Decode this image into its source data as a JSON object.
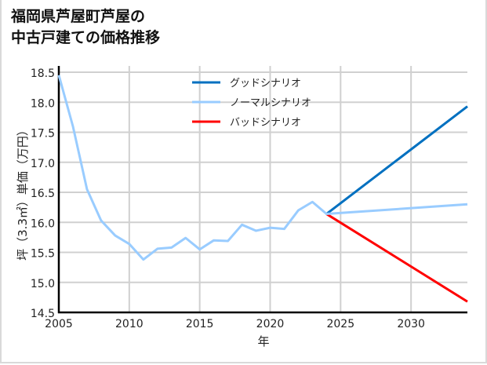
{
  "title_lines": [
    "福岡県芦屋町芦屋の",
    "中古戸建ての価格推移"
  ],
  "chart_data": {
    "type": "line",
    "title": "福岡県芦屋町芦屋の中古戸建ての価格推移",
    "xlabel": "年",
    "ylabel": "坪（3.3㎡）単価（万円）",
    "xlim": [
      2005,
      2034
    ],
    "ylim": [
      14.5,
      18.5
    ],
    "x_ticks": [
      2005,
      2010,
      2015,
      2020,
      2025,
      2030
    ],
    "y_ticks": [
      14.5,
      15.0,
      15.5,
      16.0,
      16.5,
      17.0,
      17.5,
      18.0,
      18.5
    ],
    "grid": true,
    "legend_position": "upper center",
    "series": [
      {
        "name": "ノーマルシナリオ",
        "color": "#99ccff",
        "x": [
          2005,
          2006,
          2007,
          2008,
          2009,
          2010,
          2011,
          2012,
          2013,
          2014,
          2015,
          2016,
          2017,
          2018,
          2019,
          2020,
          2021,
          2022,
          2023,
          2024,
          2034
        ],
        "values": [
          18.45,
          17.6,
          16.55,
          16.03,
          15.78,
          15.64,
          15.38,
          15.56,
          15.58,
          15.74,
          15.55,
          15.7,
          15.69,
          15.96,
          15.86,
          15.91,
          15.89,
          16.2,
          16.34,
          16.14,
          16.3
        ]
      },
      {
        "name": "グッドシナリオ",
        "color": "#0070c0",
        "x": [
          2024,
          2034
        ],
        "values": [
          16.14,
          17.93
        ]
      },
      {
        "name": "バッドシナリオ",
        "color": "#ff0000",
        "x": [
          2024,
          2034
        ],
        "values": [
          16.14,
          14.68
        ]
      }
    ]
  },
  "legend": [
    {
      "label": "グッドシナリオ",
      "color": "#0070c0"
    },
    {
      "label": "ノーマルシナリオ",
      "color": "#99ccff"
    },
    {
      "label": "バッドシナリオ",
      "color": "#ff0000"
    }
  ]
}
